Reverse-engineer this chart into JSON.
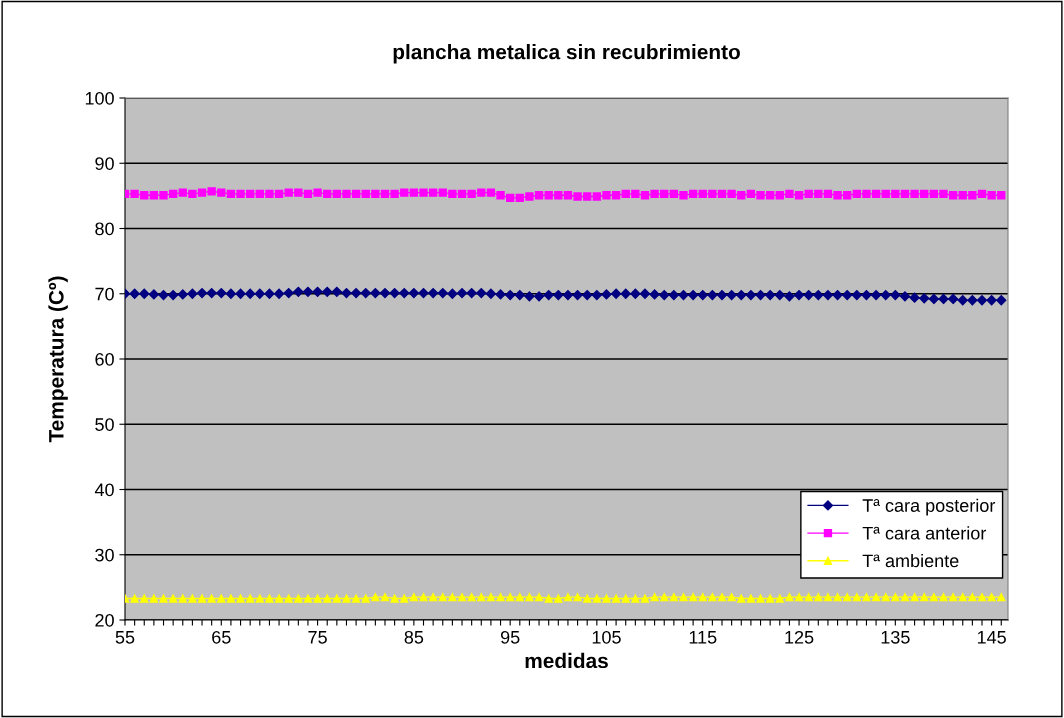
{
  "chart_data": {
    "type": "line",
    "title": "plancha metalica sin recubrimiento",
    "xlabel": "medidas",
    "ylabel": "Temperatura (Cº)",
    "categories": [
      "55",
      null,
      null,
      null,
      null,
      null,
      null,
      null,
      null,
      null,
      "65",
      null,
      null,
      null,
      null,
      null,
      null,
      null,
      null,
      null,
      "75",
      null,
      null,
      null,
      null,
      null,
      null,
      null,
      null,
      null,
      "85",
      null,
      null,
      null,
      null,
      null,
      null,
      null,
      null,
      null,
      "95",
      null,
      null,
      null,
      null,
      null,
      null,
      null,
      null,
      null,
      "105",
      null,
      null,
      null,
      null,
      null,
      null,
      null,
      null,
      null,
      "115",
      null,
      null,
      null,
      null,
      null,
      null,
      null,
      null,
      null,
      "125",
      null,
      null,
      null,
      null,
      null,
      null,
      null,
      null,
      null,
      "135",
      null,
      null,
      null,
      null,
      null,
      null,
      null,
      null,
      null,
      "145",
      null
    ],
    "series": [
      {
        "name": "Tª cara posterior",
        "color": "#000080",
        "marker": "diamond",
        "values": [
          70.0,
          70.0,
          70.0,
          69.9,
          69.8,
          69.8,
          69.9,
          70.0,
          70.1,
          70.1,
          70.1,
          70.0,
          70.0,
          70.0,
          70.0,
          70.0,
          70.0,
          70.1,
          70.3,
          70.3,
          70.3,
          70.3,
          70.3,
          70.1,
          70.1,
          70.1,
          70.1,
          70.1,
          70.1,
          70.1,
          70.1,
          70.1,
          70.1,
          70.1,
          70.0,
          70.1,
          70.1,
          70.1,
          70.0,
          69.9,
          69.8,
          69.8,
          69.6,
          69.6,
          69.8,
          69.8,
          69.8,
          69.8,
          69.8,
          69.8,
          69.9,
          70.0,
          70.0,
          70.0,
          70.0,
          69.9,
          69.8,
          69.8,
          69.8,
          69.8,
          69.8,
          69.8,
          69.8,
          69.8,
          69.8,
          69.8,
          69.8,
          69.8,
          69.8,
          69.6,
          69.8,
          69.8,
          69.8,
          69.8,
          69.8,
          69.8,
          69.8,
          69.8,
          69.8,
          69.8,
          69.8,
          69.6,
          69.4,
          69.3,
          69.2,
          69.2,
          69.2,
          69.0,
          69.0,
          69.0,
          69.0,
          69.0
        ]
      },
      {
        "name": "Tª cara anterior",
        "color": "#ff00ff",
        "marker": "square",
        "values": [
          85.3,
          85.3,
          85.1,
          85.1,
          85.1,
          85.3,
          85.5,
          85.3,
          85.5,
          85.7,
          85.5,
          85.3,
          85.3,
          85.3,
          85.3,
          85.3,
          85.3,
          85.5,
          85.5,
          85.3,
          85.5,
          85.3,
          85.3,
          85.3,
          85.3,
          85.3,
          85.3,
          85.3,
          85.3,
          85.5,
          85.5,
          85.5,
          85.5,
          85.5,
          85.3,
          85.3,
          85.3,
          85.5,
          85.5,
          85.1,
          84.7,
          84.7,
          84.9,
          85.1,
          85.1,
          85.1,
          85.1,
          84.9,
          84.9,
          84.9,
          85.1,
          85.1,
          85.3,
          85.3,
          85.1,
          85.3,
          85.3,
          85.3,
          85.1,
          85.3,
          85.3,
          85.3,
          85.3,
          85.3,
          85.1,
          85.3,
          85.1,
          85.1,
          85.1,
          85.3,
          85.1,
          85.3,
          85.3,
          85.3,
          85.1,
          85.1,
          85.3,
          85.3,
          85.3,
          85.3,
          85.3,
          85.3,
          85.3,
          85.3,
          85.3,
          85.3,
          85.1,
          85.1,
          85.1,
          85.3,
          85.1,
          85.1
        ]
      },
      {
        "name": "Tª ambiente",
        "color": "#ffff00",
        "marker": "triangle",
        "values": [
          23.3,
          23.3,
          23.3,
          23.3,
          23.3,
          23.3,
          23.3,
          23.3,
          23.3,
          23.3,
          23.3,
          23.3,
          23.3,
          23.3,
          23.3,
          23.3,
          23.3,
          23.3,
          23.3,
          23.3,
          23.3,
          23.3,
          23.3,
          23.3,
          23.3,
          23.3,
          23.5,
          23.5,
          23.3,
          23.3,
          23.5,
          23.5,
          23.5,
          23.5,
          23.5,
          23.5,
          23.5,
          23.5,
          23.5,
          23.5,
          23.5,
          23.5,
          23.5,
          23.5,
          23.3,
          23.3,
          23.5,
          23.5,
          23.3,
          23.3,
          23.3,
          23.3,
          23.3,
          23.3,
          23.3,
          23.5,
          23.5,
          23.5,
          23.5,
          23.5,
          23.5,
          23.5,
          23.5,
          23.5,
          23.3,
          23.3,
          23.3,
          23.3,
          23.3,
          23.5,
          23.5,
          23.5,
          23.5,
          23.5,
          23.5,
          23.5,
          23.5,
          23.5,
          23.5,
          23.5,
          23.5,
          23.5,
          23.5,
          23.5,
          23.5,
          23.5,
          23.5,
          23.5,
          23.5,
          23.5,
          23.5,
          23.5
        ]
      }
    ],
    "ylim": [
      20,
      100
    ],
    "yticks": [
      20,
      30,
      40,
      50,
      60,
      70,
      80,
      90,
      100
    ],
    "grid": "y",
    "legend": "bottom right"
  }
}
